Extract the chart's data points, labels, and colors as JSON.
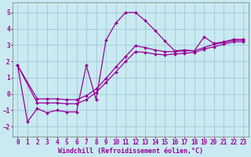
{
  "background_color": "#c8eaf0",
  "grid_color": "#a0c8d8",
  "line_color": "#990099",
  "marker": "D",
  "markersize": 2.0,
  "linewidth": 0.9,
  "xlabel": "Windchill (Refroidissement éolien,°C)",
  "xlabel_fontsize": 6.0,
  "tick_fontsize": 5.5,
  "xlim": [
    -0.5,
    23.5
  ],
  "ylim": [
    -2.6,
    5.6
  ],
  "yticks": [
    -2,
    -1,
    0,
    1,
    2,
    3,
    4,
    5
  ],
  "xticks": [
    0,
    1,
    2,
    3,
    4,
    5,
    6,
    7,
    8,
    9,
    10,
    11,
    12,
    13,
    14,
    15,
    16,
    17,
    18,
    19,
    20,
    21,
    22,
    23
  ],
  "lines": [
    {
      "x": [
        0,
        1,
        2,
        3,
        4,
        5,
        6,
        7,
        8,
        9,
        10,
        11,
        12,
        13,
        14,
        15,
        16,
        17,
        18,
        19,
        20,
        21,
        22,
        23
      ],
      "y": [
        1.75,
        -1.7,
        -0.9,
        -1.15,
        -1.0,
        -1.1,
        -1.1,
        1.75,
        -0.35,
        3.3,
        4.35,
        5.0,
        5.0,
        4.5,
        3.9,
        3.25,
        2.65,
        2.7,
        2.65,
        3.5,
        3.1,
        3.2,
        3.35,
        3.35
      ]
    },
    {
      "x": [
        0,
        2,
        3,
        4,
        5,
        6,
        7,
        8,
        9,
        10,
        11,
        12,
        13,
        14,
        15,
        16,
        17,
        18,
        19,
        20,
        21,
        22,
        23
      ],
      "y": [
        1.75,
        -0.3,
        -0.3,
        -0.3,
        -0.35,
        -0.35,
        -0.1,
        0.3,
        0.95,
        1.65,
        2.3,
        2.95,
        2.85,
        2.7,
        2.6,
        2.6,
        2.65,
        2.65,
        2.85,
        3.05,
        3.15,
        3.3,
        3.3
      ]
    },
    {
      "x": [
        0,
        2,
        3,
        4,
        5,
        6,
        7,
        8,
        9,
        10,
        11,
        12,
        13,
        14,
        15,
        16,
        17,
        18,
        19,
        20,
        21,
        22,
        23
      ],
      "y": [
        1.75,
        -0.55,
        -0.55,
        -0.55,
        -0.6,
        -0.6,
        -0.35,
        0.1,
        0.7,
        1.35,
        2.0,
        2.6,
        2.55,
        2.45,
        2.4,
        2.45,
        2.5,
        2.55,
        2.75,
        2.9,
        3.05,
        3.2,
        3.2
      ]
    }
  ]
}
